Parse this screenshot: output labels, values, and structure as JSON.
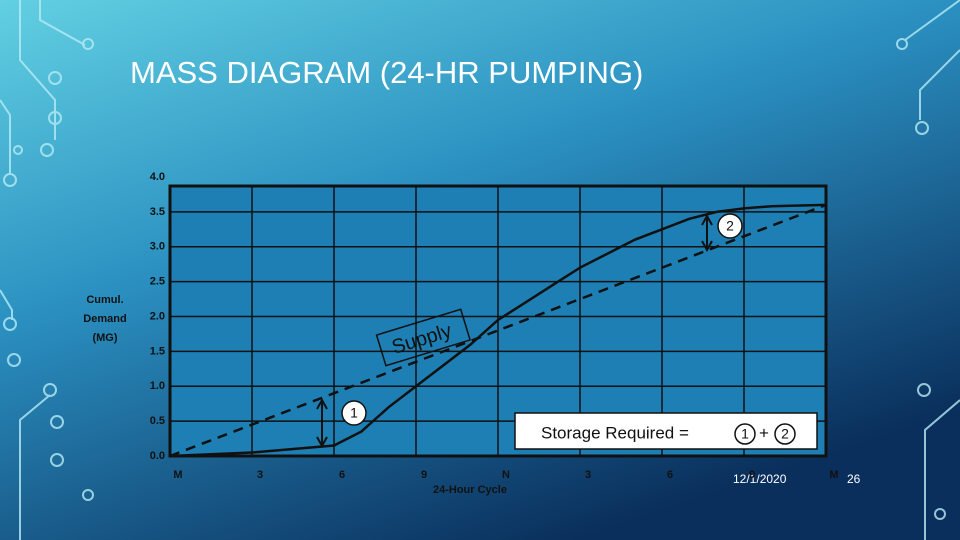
{
  "slide": {
    "title": "MASS DIAGRAM (24-HR PUMPING)",
    "date": "12/1/2020",
    "page": "26"
  },
  "chart_data": {
    "type": "line",
    "ylabel": [
      "Cumul.",
      "Demand",
      "(MG)"
    ],
    "xlabel": "24-Hour Cycle",
    "xlim": [
      0,
      24
    ],
    "ylim": [
      0,
      4
    ],
    "xticks": [
      {
        "value": 0,
        "label": "M"
      },
      3,
      6,
      9,
      {
        "value": 12,
        "label": "N"
      },
      {
        "value": 15,
        "label": "3"
      },
      {
        "value": 18,
        "label": "6"
      },
      {
        "value": 21,
        "label": "9"
      },
      {
        "value": 24,
        "label": "M"
      }
    ],
    "yticks": [
      {
        "value": 0,
        "label": "0.0"
      },
      0.5,
      {
        "value": 1,
        "label": "1.0"
      },
      1.5,
      {
        "value": 2,
        "label": "2.0"
      },
      2.5,
      {
        "value": 3,
        "label": "3.0"
      },
      3.5,
      {
        "value": 4,
        "label": "4.0"
      }
    ],
    "grid": true,
    "series": [
      {
        "name": "Demand",
        "color": "#111111",
        "dash": false,
        "x": [
          0,
          3,
          6,
          7,
          8,
          9,
          10,
          11,
          12,
          13,
          14,
          15,
          16,
          17,
          18,
          19,
          20,
          21,
          22,
          24
        ],
        "values": [
          0,
          0.05,
          0.15,
          0.35,
          0.7,
          1.0,
          1.3,
          1.6,
          1.95,
          2.2,
          2.45,
          2.7,
          2.9,
          3.1,
          3.25,
          3.4,
          3.5,
          3.55,
          3.58,
          3.6
        ]
      },
      {
        "name": "Supply",
        "color": "#111111",
        "dash": true,
        "x": [
          0,
          24
        ],
        "values": [
          0,
          3.6
        ]
      }
    ],
    "annotations": {
      "one": "1",
      "two": "2",
      "storage": "Storage Required =",
      "plus": "+"
    }
  }
}
